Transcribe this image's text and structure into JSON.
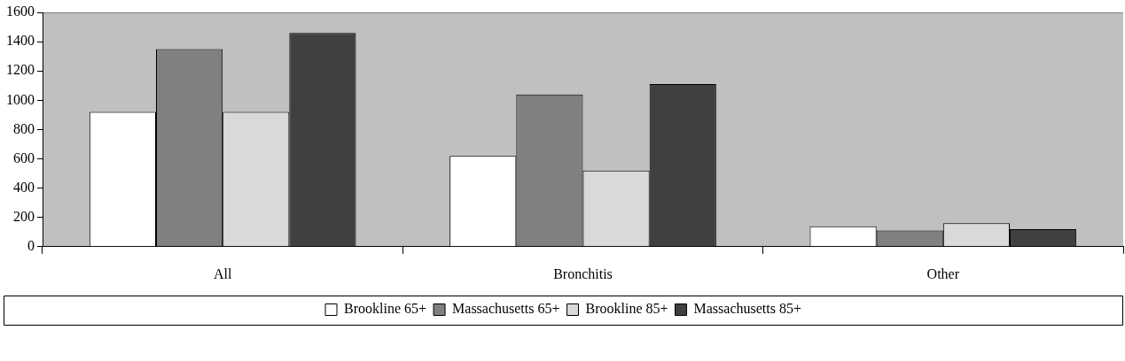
{
  "chart_data": {
    "type": "bar",
    "categories": [
      "All",
      "Bronchitis",
      "Other"
    ],
    "series": [
      {
        "name": "Brookline 65+",
        "color": "#ffffff",
        "values": [
          920,
          620,
          140
        ]
      },
      {
        "name": "Massachusetts 65+",
        "color": "#808080",
        "values": [
          1350,
          1040,
          110
        ]
      },
      {
        "name": "Brookline 85+",
        "color": "#d9d9d9",
        "values": [
          920,
          520,
          160
        ]
      },
      {
        "name": "Massachusetts 85+",
        "color": "#404040",
        "values": [
          1460,
          1110,
          120
        ]
      }
    ],
    "ylim": [
      0,
      1600
    ],
    "yticks": [
      0,
      200,
      400,
      600,
      800,
      1000,
      1200,
      1400,
      1600
    ],
    "grid": false,
    "legend": "bottom"
  }
}
